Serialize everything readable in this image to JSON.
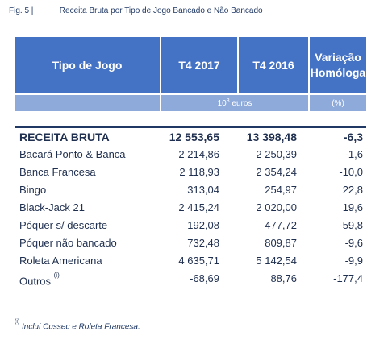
{
  "caption": {
    "figure": "Fig. 5 |",
    "title": "Receita Bruta por Tipo de Jogo Bancado e Não Bancado"
  },
  "table": {
    "headers": {
      "col1": "Tipo de Jogo",
      "col2": "T4 2017",
      "col3": "T4 2016",
      "col4_line1": "Variação",
      "col4_line2": "Homóloga"
    },
    "units": {
      "values_base": "10",
      "values_exp": "3",
      "values_rest": " euros",
      "variation": "(%)"
    },
    "total": {
      "name": "RECEITA BRUTA",
      "t4_2017": "12 553,65",
      "t4_2016": "13 398,48",
      "variation": "-6,3"
    },
    "rows": [
      {
        "name": "Bacará Ponto & Banca",
        "t4_2017": "2 214,86",
        "t4_2016": "2 250,39",
        "variation": "-1,6"
      },
      {
        "name": "Banca Francesa",
        "t4_2017": "2 118,93",
        "t4_2016": "2 354,24",
        "variation": "-10,0"
      },
      {
        "name": "Bingo",
        "t4_2017": "313,04",
        "t4_2016": "254,97",
        "variation": "22,8"
      },
      {
        "name": "Black-Jack 21",
        "t4_2017": "2 415,24",
        "t4_2016": "2 020,00",
        "variation": "19,6"
      },
      {
        "name": "Póquer s/ descarte",
        "t4_2017": "192,08",
        "t4_2016": "477,72",
        "variation": "-59,8"
      },
      {
        "name": "Póquer não bancado",
        "t4_2017": "732,48",
        "t4_2016": "809,87",
        "variation": "-9,6"
      },
      {
        "name": "Roleta Americana",
        "t4_2017": "4 635,71",
        "t4_2016": "5 142,54",
        "variation": "-9,9"
      },
      {
        "name": "Outros",
        "name_note": "(i)",
        "t4_2017": "-68,69",
        "t4_2016": "88,76",
        "variation": "-177,4"
      }
    ]
  },
  "footnote": {
    "marker": "(i)",
    "text": " Inclui Cussec e Roleta Francesa."
  }
}
